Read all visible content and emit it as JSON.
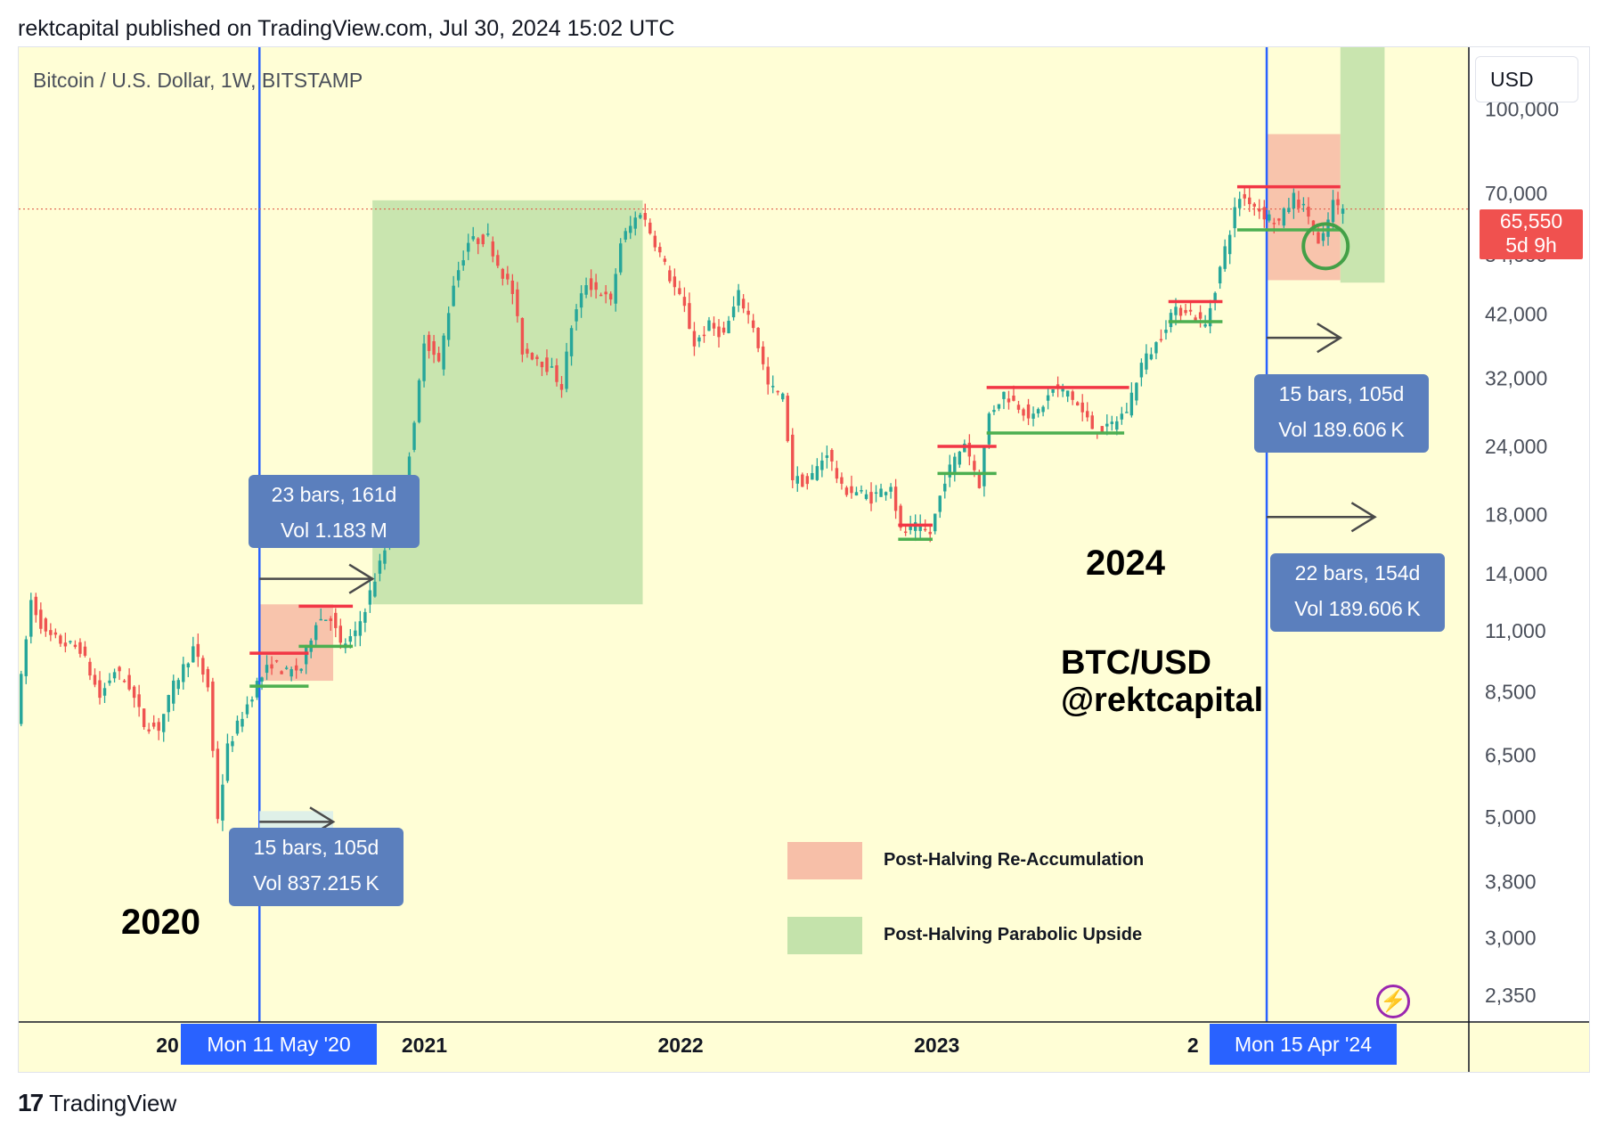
{
  "header": {
    "published": "rektcapital published on TradingView.com, Jul 30, 2024 15:02 UTC"
  },
  "symbol": {
    "title": "Bitcoin / U.S. Dollar, 1W, BITSTAMP"
  },
  "currency_label": "USD",
  "last_price": {
    "value": "65,550",
    "countdown": "5d 9h"
  },
  "callouts": [
    {
      "line1": "23 bars, 161d",
      "line2": "Vol 1.183 M"
    },
    {
      "line1": "15 bars, 105d",
      "line2": "Vol 837.215 K"
    },
    {
      "line1": "15 bars, 105d",
      "line2": "Vol 189.606 K"
    },
    {
      "line1": "22 bars, 154d",
      "line2": "Vol 189.606 K"
    }
  ],
  "date_tags": [
    "Mon 11 May '20",
    "Mon 15 Apr '24"
  ],
  "big_labels": {
    "year_2020": "2020",
    "year_2024": "2024",
    "pair": "BTC/USD",
    "handle": "@rektcapital"
  },
  "legend": [
    {
      "label": "Post-Halving Re-Accumulation",
      "color": "#f7bfa8"
    },
    {
      "label": "Post-Halving Parabolic Upside",
      "color": "#c4e3ab"
    }
  ],
  "footer": {
    "brand": "TradingView",
    "logo": "17"
  },
  "colors": {
    "background": "#fffed6",
    "up": "#26a69a",
    "down": "#ef5350",
    "halving_line": "#2962ff",
    "resistance": "#f23645",
    "support": "#4caf50"
  },
  "chart_data": {
    "type": "candlestick",
    "title": "Bitcoin / U.S. Dollar, 1W, BITSTAMP",
    "yscale": "log",
    "ylim": [
      2100,
      130000
    ],
    "y_ticks": [
      100000,
      70000,
      54000,
      42000,
      32000,
      24000,
      18000,
      14000,
      11000,
      8500,
      6500,
      5000,
      3800,
      3000,
      2350
    ],
    "y_tick_labels": [
      "100,000",
      "70,000",
      "54,000",
      "42,000",
      "32,000",
      "24,000",
      "18,000",
      "14,000",
      "11,000",
      "8,500",
      "6,500",
      "5,000",
      "3,800",
      "3,000",
      "2,350"
    ],
    "x_ticks": [
      {
        "label": "20",
        "date": "2020-01-01"
      },
      {
        "label": "2021",
        "date": "2021-01-01"
      },
      {
        "label": "2022",
        "date": "2022-01-01"
      },
      {
        "label": "2023",
        "date": "2023-01-01"
      },
      {
        "label": "2",
        "date": "2024-01-01"
      }
    ],
    "xlim": [
      "2019-06-03",
      "2025-01-28"
    ],
    "last_price": 65550,
    "halvings": [
      "2020-05-11",
      "2024-04-15"
    ],
    "price_path": [
      [
        "2019-06-03",
        7600
      ],
      [
        "2019-06-24",
        12500
      ],
      [
        "2019-07-15",
        10800
      ],
      [
        "2019-08-12",
        10400
      ],
      [
        "2019-09-02",
        10200
      ],
      [
        "2019-09-30",
        8300
      ],
      [
        "2019-10-21",
        9300
      ],
      [
        "2019-11-11",
        8700
      ],
      [
        "2019-12-02",
        7400
      ],
      [
        "2019-12-23",
        7300
      ],
      [
        "2020-01-13",
        8700
      ],
      [
        "2020-02-10",
        10200
      ],
      [
        "2020-03-02",
        8700
      ],
      [
        "2020-03-16",
        5000
      ],
      [
        "2020-03-30",
        6700
      ],
      [
        "2020-04-20",
        7700
      ],
      [
        "2020-05-11",
        8800
      ],
      [
        "2020-06-01",
        9600
      ],
      [
        "2020-06-22",
        9200
      ],
      [
        "2020-07-13",
        9400
      ],
      [
        "2020-08-03",
        11500
      ],
      [
        "2020-08-24",
        11700
      ],
      [
        "2020-09-07",
        10300
      ],
      [
        "2020-09-28",
        10800
      ],
      [
        "2020-10-19",
        12900
      ],
      [
        "2020-11-09",
        15500
      ],
      [
        "2020-11-30",
        19000
      ],
      [
        "2020-12-21",
        26000
      ],
      [
        "2021-01-04",
        38000
      ],
      [
        "2021-01-25",
        34000
      ],
      [
        "2021-02-15",
        48000
      ],
      [
        "2021-03-08",
        57000
      ],
      [
        "2021-04-05",
        58000
      ],
      [
        "2021-04-19",
        52000
      ],
      [
        "2021-05-10",
        46000
      ],
      [
        "2021-05-24",
        36000
      ],
      [
        "2021-06-14",
        35000
      ],
      [
        "2021-07-05",
        33000
      ],
      [
        "2021-07-19",
        31000
      ],
      [
        "2021-08-02",
        40000
      ],
      [
        "2021-08-23",
        48000
      ],
      [
        "2021-09-13",
        46000
      ],
      [
        "2021-09-27",
        44000
      ],
      [
        "2021-10-11",
        57000
      ],
      [
        "2021-11-08",
        65000
      ],
      [
        "2021-11-29",
        57000
      ],
      [
        "2021-12-20",
        49000
      ],
      [
        "2022-01-10",
        43000
      ],
      [
        "2022-01-24",
        37000
      ],
      [
        "2022-02-14",
        40000
      ],
      [
        "2022-03-07",
        38500
      ],
      [
        "2022-03-28",
        45500
      ],
      [
        "2022-04-18",
        40000
      ],
      [
        "2022-05-09",
        31000
      ],
      [
        "2022-05-30",
        29500
      ],
      [
        "2022-06-13",
        21000
      ],
      [
        "2022-07-04",
        20500
      ],
      [
        "2022-08-01",
        23500
      ],
      [
        "2022-08-22",
        20000
      ],
      [
        "2022-09-12",
        19800
      ],
      [
        "2022-10-03",
        19300
      ],
      [
        "2022-10-31",
        20500
      ],
      [
        "2022-11-14",
        16700
      ],
      [
        "2022-12-05",
        17000
      ],
      [
        "2022-12-26",
        16600
      ],
      [
        "2023-01-16",
        21000
      ],
      [
        "2023-02-13",
        24500
      ],
      [
        "2023-03-06",
        20500
      ],
      [
        "2023-03-20",
        27500
      ],
      [
        "2023-04-10",
        30000
      ],
      [
        "2023-05-01",
        28500
      ],
      [
        "2023-05-22",
        27000
      ],
      [
        "2023-06-19",
        30500
      ],
      [
        "2023-07-10",
        30300
      ],
      [
        "2023-08-14",
        26000
      ],
      [
        "2023-09-04",
        25800
      ],
      [
        "2023-10-02",
        28000
      ],
      [
        "2023-10-23",
        34000
      ],
      [
        "2023-11-13",
        37000
      ],
      [
        "2023-12-04",
        42000
      ],
      [
        "2023-12-25",
        43000
      ],
      [
        "2024-01-22",
        40000
      ],
      [
        "2024-02-12",
        51000
      ],
      [
        "2024-03-04",
        65000
      ],
      [
        "2024-03-11",
        69000
      ],
      [
        "2024-03-25",
        68000
      ],
      [
        "2024-04-15",
        64000
      ],
      [
        "2024-05-06",
        62000
      ],
      [
        "2024-05-27",
        69000
      ],
      [
        "2024-06-17",
        64000
      ],
      [
        "2024-07-01",
        56000
      ],
      [
        "2024-07-08",
        58000
      ],
      [
        "2024-07-22",
        67500
      ],
      [
        "2024-07-29",
        65550
      ]
    ],
    "zones": [
      {
        "kind": "re-accumulation",
        "x": [
          "2020-05-11",
          "2020-08-24"
        ],
        "y": [
          8900,
          12300
        ]
      },
      {
        "kind": "parabolic",
        "x": [
          "2020-10-19",
          "2021-11-08"
        ],
        "y": [
          12300,
          68000
        ]
      },
      {
        "kind": "re-accumulation",
        "x": [
          "2024-04-15",
          "2024-07-29"
        ],
        "y": [
          48500,
          90000
        ]
      },
      {
        "kind": "parabolic",
        "x": [
          "2024-07-29",
          "2024-09-30"
        ],
        "y": [
          48000,
          130000
        ]
      }
    ],
    "levels": [
      {
        "kind": "resistance",
        "x": [
          "2020-04-27",
          "2020-07-20"
        ],
        "y": 10000
      },
      {
        "kind": "support",
        "x": [
          "2020-04-27",
          "2020-07-20"
        ],
        "y": 8700
      },
      {
        "kind": "resistance",
        "x": [
          "2020-07-06",
          "2020-09-21"
        ],
        "y": 12200
      },
      {
        "kind": "support",
        "x": [
          "2020-07-06",
          "2020-09-21"
        ],
        "y": 10300
      },
      {
        "kind": "resistance",
        "x": [
          "2022-11-07",
          "2022-12-26"
        ],
        "y": 17200
      },
      {
        "kind": "support",
        "x": [
          "2022-11-07",
          "2022-12-26"
        ],
        "y": 16200
      },
      {
        "kind": "resistance",
        "x": [
          "2023-01-02",
          "2023-03-27"
        ],
        "y": 24000
      },
      {
        "kind": "support",
        "x": [
          "2023-01-02",
          "2023-03-27"
        ],
        "y": 21400
      },
      {
        "kind": "resistance",
        "x": [
          "2023-03-13",
          "2023-10-02"
        ],
        "y": 30800
      },
      {
        "kind": "support",
        "x": [
          "2023-03-13",
          "2023-09-25"
        ],
        "y": 25400
      },
      {
        "kind": "resistance",
        "x": [
          "2023-11-27",
          "2024-02-12"
        ],
        "y": 44300
      },
      {
        "kind": "support",
        "x": [
          "2023-11-27",
          "2024-02-12"
        ],
        "y": 40700
      },
      {
        "kind": "resistance",
        "x": [
          "2024-03-04",
          "2024-07-29"
        ],
        "y": 72000
      },
      {
        "kind": "support",
        "x": [
          "2024-03-04",
          "2024-07-29"
        ],
        "y": 60000
      }
    ],
    "arrows": [
      {
        "x": [
          "2020-05-11",
          "2020-08-24"
        ],
        "y": 4900,
        "shaded": true
      },
      {
        "x": [
          "2020-05-11",
          "2020-10-19"
        ],
        "y": 13700,
        "shaded": false
      },
      {
        "x": [
          "2024-04-15",
          "2024-07-29"
        ],
        "y": 38000,
        "shaded": false
      },
      {
        "x": [
          "2024-04-15",
          "2024-09-16"
        ],
        "y": 17800,
        "shaded": false
      }
    ],
    "marker_circle": {
      "date": "2024-07-08",
      "price": 56000
    }
  }
}
